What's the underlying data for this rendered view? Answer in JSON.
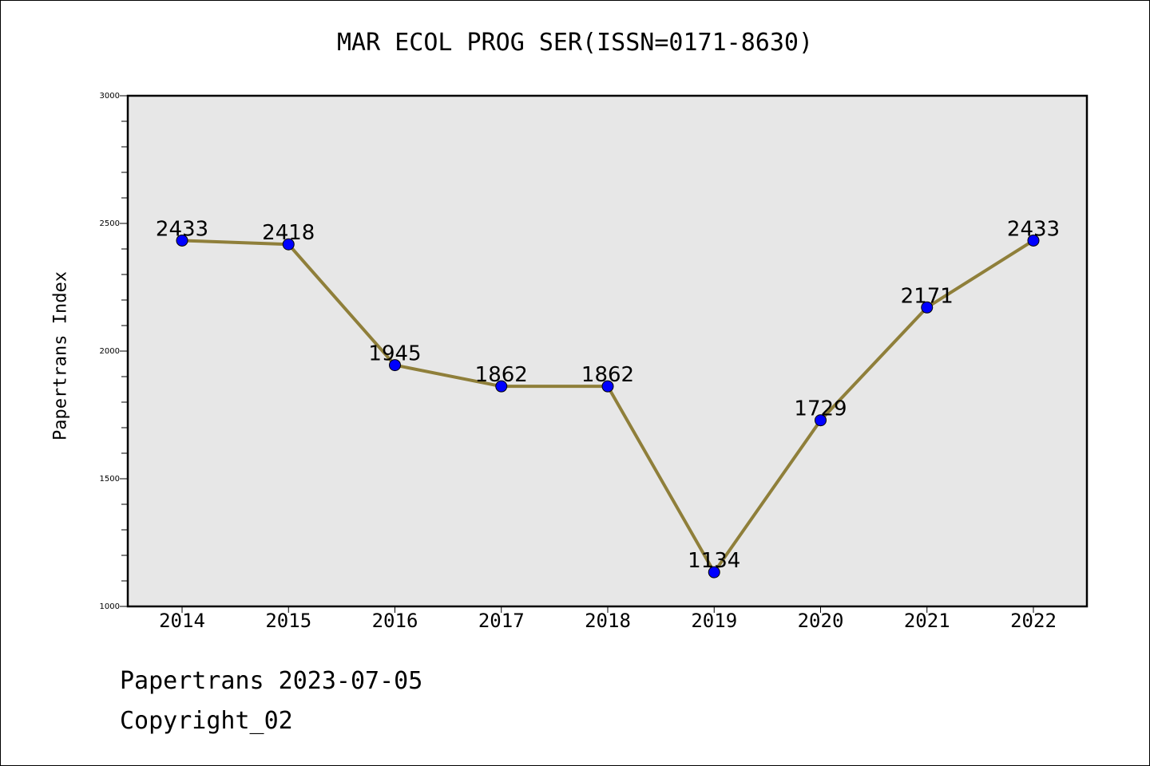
{
  "footer": {
    "line1": "Papertrans 2023-07-05",
    "line2": "Copyright_02"
  },
  "chart_data": {
    "type": "line",
    "title": "MAR ECOL PROG SER(ISSN=0171-8630)",
    "ylabel": "Papertrans Index",
    "xlabel": "",
    "categories": [
      "2014",
      "2015",
      "2016",
      "2017",
      "2018",
      "2019",
      "2020",
      "2021",
      "2022"
    ],
    "values": [
      2433,
      2418,
      1945,
      1862,
      1862,
      1134,
      1729,
      2171,
      2433
    ],
    "ylim": [
      1000,
      3000
    ],
    "yticks": [
      1000,
      1500,
      2000,
      2500,
      3000
    ],
    "grid": false,
    "colors": {
      "line": "#8f7f3a",
      "marker": "#0000ff",
      "plot_bg": "#e7e7e7"
    }
  }
}
